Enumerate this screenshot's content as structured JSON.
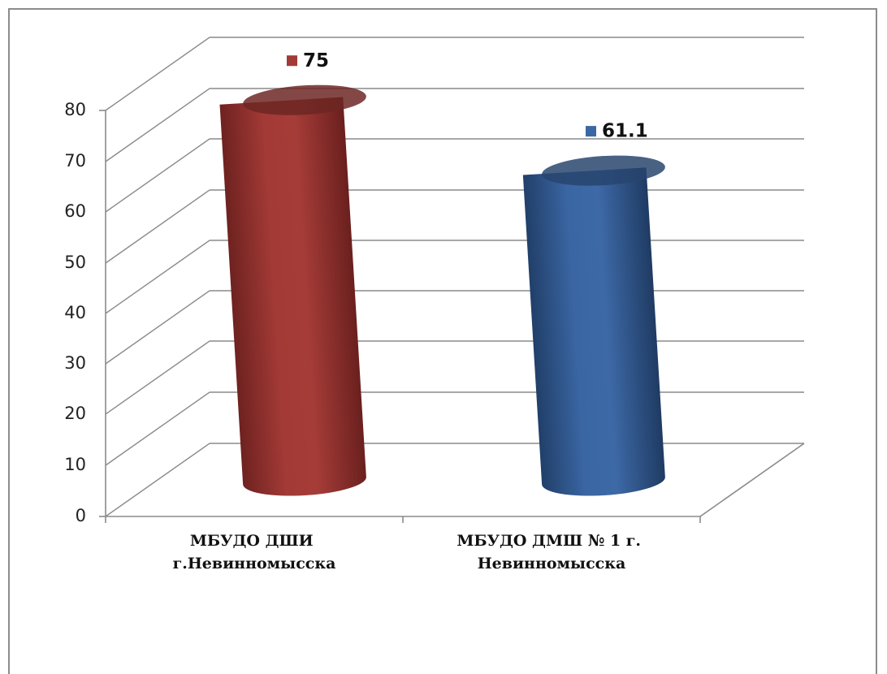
{
  "chart_data": {
    "type": "bar",
    "style": "3d-cylinder",
    "categories": [
      [
        "МБУДО ДШИ",
        "г.Невинномысска"
      ],
      [
        "МБУДО ДМШ № 1 г.",
        "Невинномысска"
      ]
    ],
    "values": [
      75,
      61.1
    ],
    "data_labels": [
      "75",
      "61.1"
    ],
    "colors": [
      "#a23a35",
      "#3b67a4"
    ],
    "ylim": [
      0,
      80
    ],
    "y_ticks": [
      "0",
      "10",
      "20",
      "30",
      "40",
      "50",
      "60",
      "70",
      "80"
    ],
    "grid": true,
    "title": "",
    "xlabel": "",
    "ylabel": ""
  }
}
